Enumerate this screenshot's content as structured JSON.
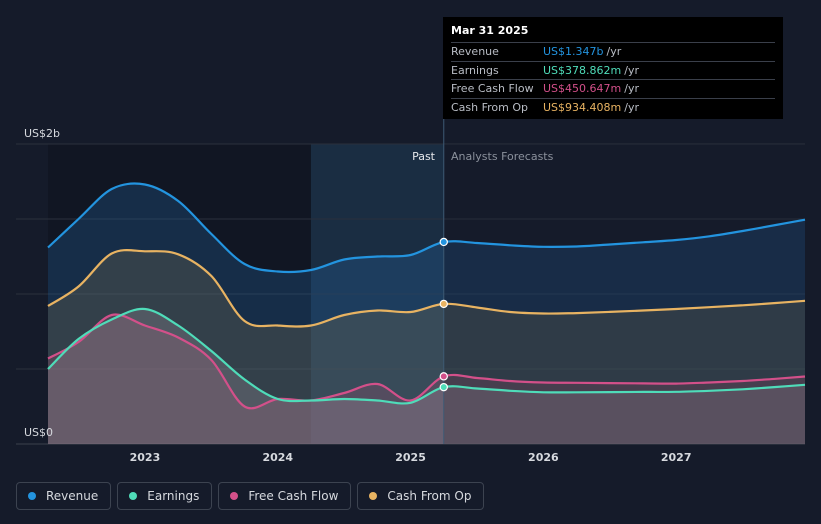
{
  "chart_data": {
    "type": "line",
    "title": "",
    "y_label_top": "US$2b",
    "y_label_bottom": "US$0",
    "ylim": [
      0,
      2000
    ],
    "xlim": [
      2022.27,
      2027.97
    ],
    "x_ticks": [
      {
        "value": 2023.0,
        "label": "2023"
      },
      {
        "value": 2024.0,
        "label": "2024"
      },
      {
        "value": 2025.0,
        "label": "2025"
      },
      {
        "value": 2026.0,
        "label": "2026"
      },
      {
        "value": 2027.0,
        "label": "2027"
      }
    ],
    "past_label": "Past",
    "forecast_label": "Analysts Forecasts",
    "divider_x": 2025.25,
    "highlight_start_x": 2024.25,
    "series": [
      {
        "name": "Revenue",
        "color": "#2394df",
        "points": [
          [
            2022.27,
            1310
          ],
          [
            2022.5,
            1500
          ],
          [
            2022.75,
            1700
          ],
          [
            2023.0,
            1730
          ],
          [
            2023.25,
            1620
          ],
          [
            2023.5,
            1400
          ],
          [
            2023.75,
            1200
          ],
          [
            2024.0,
            1150
          ],
          [
            2024.25,
            1160
          ],
          [
            2024.5,
            1230
          ],
          [
            2024.75,
            1250
          ],
          [
            2025.0,
            1260
          ],
          [
            2025.25,
            1347
          ],
          [
            2025.5,
            1340
          ],
          [
            2025.75,
            1325
          ],
          [
            2026.0,
            1315
          ],
          [
            2026.25,
            1317
          ],
          [
            2026.5,
            1330
          ],
          [
            2026.75,
            1345
          ],
          [
            2027.0,
            1360
          ],
          [
            2027.25,
            1385
          ],
          [
            2027.5,
            1420
          ],
          [
            2027.75,
            1460
          ],
          [
            2027.97,
            1495
          ]
        ]
      },
      {
        "name": "Cash From Op",
        "color": "#e8b362",
        "points": [
          [
            2022.27,
            920
          ],
          [
            2022.5,
            1050
          ],
          [
            2022.75,
            1270
          ],
          [
            2023.0,
            1285
          ],
          [
            2023.25,
            1265
          ],
          [
            2023.5,
            1120
          ],
          [
            2023.75,
            820
          ],
          [
            2024.0,
            790
          ],
          [
            2024.25,
            790
          ],
          [
            2024.5,
            860
          ],
          [
            2024.75,
            890
          ],
          [
            2025.0,
            880
          ],
          [
            2025.25,
            934
          ],
          [
            2025.5,
            910
          ],
          [
            2025.75,
            880
          ],
          [
            2026.0,
            870
          ],
          [
            2026.25,
            873
          ],
          [
            2026.5,
            881
          ],
          [
            2026.75,
            890
          ],
          [
            2027.0,
            900
          ],
          [
            2027.25,
            912
          ],
          [
            2027.5,
            925
          ],
          [
            2027.75,
            940
          ],
          [
            2027.97,
            955
          ]
        ]
      },
      {
        "name": "Free Cash Flow",
        "color": "#d3508a",
        "points": [
          [
            2022.27,
            570
          ],
          [
            2022.5,
            680
          ],
          [
            2022.75,
            860
          ],
          [
            2023.0,
            790
          ],
          [
            2023.25,
            710
          ],
          [
            2023.5,
            560
          ],
          [
            2023.75,
            250
          ],
          [
            2024.0,
            300
          ],
          [
            2024.25,
            290
          ],
          [
            2024.5,
            340
          ],
          [
            2024.75,
            400
          ],
          [
            2025.0,
            290
          ],
          [
            2025.25,
            451
          ],
          [
            2025.5,
            440
          ],
          [
            2025.75,
            420
          ],
          [
            2026.0,
            410
          ],
          [
            2026.25,
            408
          ],
          [
            2026.5,
            406
          ],
          [
            2026.75,
            404
          ],
          [
            2027.0,
            403
          ],
          [
            2027.25,
            410
          ],
          [
            2027.5,
            420
          ],
          [
            2027.75,
            435
          ],
          [
            2027.97,
            450
          ]
        ]
      },
      {
        "name": "Earnings",
        "color": "#4fdcb9",
        "points": [
          [
            2022.27,
            500
          ],
          [
            2022.5,
            700
          ],
          [
            2022.75,
            830
          ],
          [
            2023.0,
            900
          ],
          [
            2023.25,
            790
          ],
          [
            2023.5,
            620
          ],
          [
            2023.75,
            430
          ],
          [
            2024.0,
            300
          ],
          [
            2024.25,
            290
          ],
          [
            2024.5,
            300
          ],
          [
            2024.75,
            290
          ],
          [
            2025.0,
            275
          ],
          [
            2025.25,
            379
          ],
          [
            2025.5,
            370
          ],
          [
            2025.75,
            355
          ],
          [
            2026.0,
            345
          ],
          [
            2026.25,
            345
          ],
          [
            2026.5,
            346
          ],
          [
            2026.75,
            347
          ],
          [
            2027.0,
            348
          ],
          [
            2027.25,
            355
          ],
          [
            2027.5,
            365
          ],
          [
            2027.75,
            380
          ],
          [
            2027.97,
            395
          ]
        ]
      }
    ],
    "markers": [
      {
        "series": "Revenue",
        "x": 2025.25,
        "y": 1347
      },
      {
        "series": "Cash From Op",
        "x": 2025.25,
        "y": 934
      },
      {
        "series": "Free Cash Flow",
        "x": 2025.25,
        "y": 451
      },
      {
        "series": "Earnings",
        "x": 2025.25,
        "y": 379
      }
    ],
    "tooltip": {
      "date": "Mar 31 2025",
      "rows": [
        {
          "label": "Revenue",
          "value": "US$1.347b",
          "unit": "/yr",
          "color": "#2394df"
        },
        {
          "label": "Earnings",
          "value": "US$378.862m",
          "unit": "/yr",
          "color": "#4fdcb9"
        },
        {
          "label": "Free Cash Flow",
          "value": "US$450.647m",
          "unit": "/yr",
          "color": "#d3508a"
        },
        {
          "label": "Cash From Op",
          "value": "US$934.408m",
          "unit": "/yr",
          "color": "#e8b362"
        }
      ]
    },
    "legend": [
      {
        "label": "Revenue",
        "color": "#2394df"
      },
      {
        "label": "Earnings",
        "color": "#4fdcb9"
      },
      {
        "label": "Free Cash Flow",
        "color": "#d3508a"
      },
      {
        "label": "Cash From Op",
        "color": "#e8b362"
      }
    ]
  }
}
